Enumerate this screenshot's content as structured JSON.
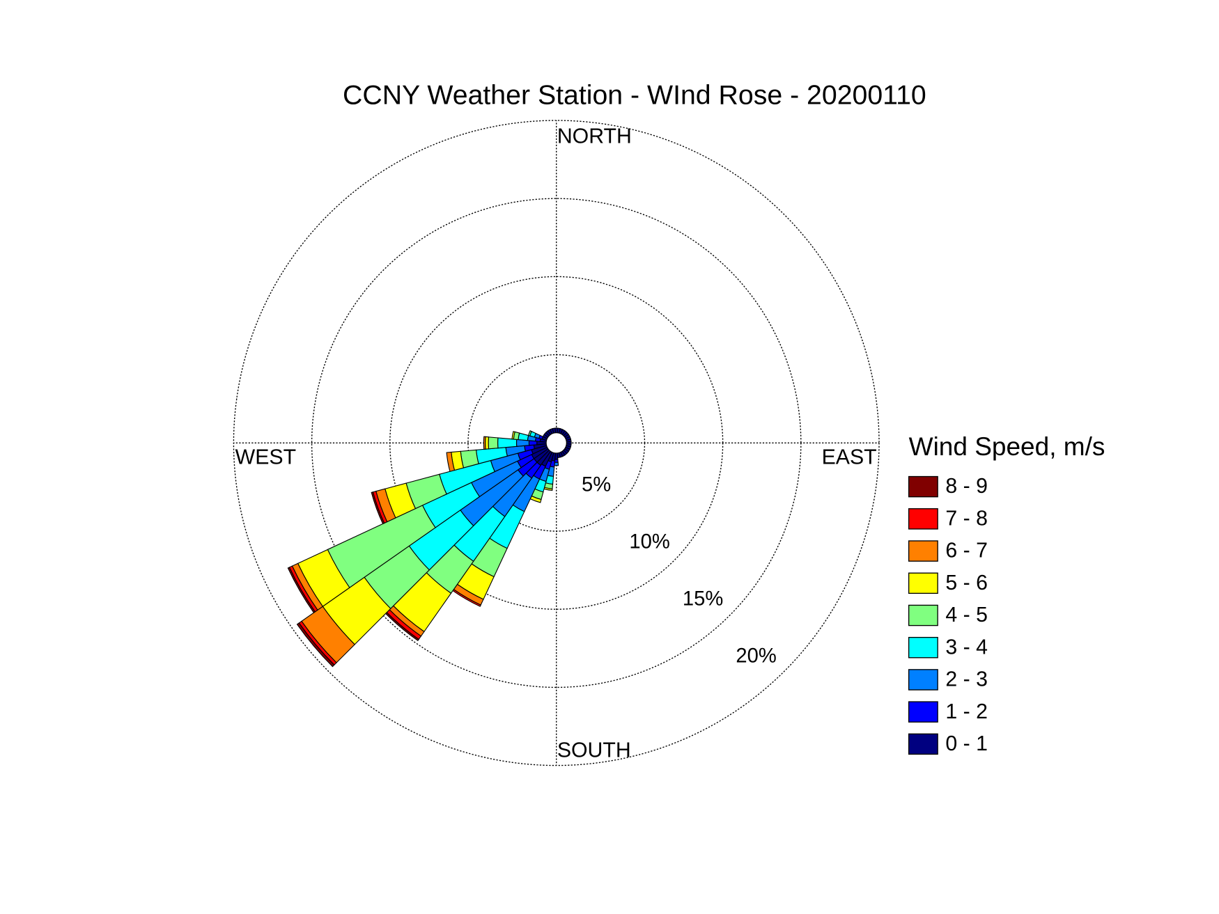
{
  "chart_data": {
    "type": "windrose",
    "title": "CCNY Weather Station - WInd Rose - 20200110",
    "legend_title": "Wind Speed, m/s",
    "direction_labels": {
      "north": "NORTH",
      "east": "EAST",
      "south": "SOUTH",
      "west": "WEST"
    },
    "x": [
      0,
      10,
      20,
      30,
      40,
      50,
      60,
      70,
      80,
      90,
      100,
      110,
      120,
      130,
      140,
      150,
      160,
      170,
      180,
      190,
      200,
      210,
      220,
      230,
      240,
      250,
      260,
      270,
      280,
      290,
      300,
      310,
      320,
      330,
      340,
      350
    ],
    "ylim": [
      0,
      20
    ],
    "yticks": [
      {
        "value": 5,
        "label": "5%"
      },
      {
        "value": 10,
        "label": "10%"
      },
      {
        "value": 15,
        "label": "15%"
      },
      {
        "value": 20,
        "label": "20%"
      }
    ],
    "grid": true,
    "legend": "right",
    "series": [
      {
        "name": "0 - 1",
        "color": "#000080",
        "values": [
          0.3,
          0.3,
          0.3,
          0.3,
          0.3,
          0.3,
          0.3,
          0.3,
          0.3,
          0.3,
          0.3,
          0.3,
          0.3,
          0.3,
          0.3,
          0.3,
          0.3,
          0.3,
          0.4,
          0.5,
          0.6,
          1.0,
          1.1,
          1.1,
          1.1,
          1.0,
          0.8,
          0.6,
          0.4,
          0.3,
          0.3,
          0.3,
          0.3,
          0.3,
          0.3,
          0.3
        ]
      },
      {
        "name": "1 - 2",
        "color": "#0000ff",
        "values": [
          0,
          0,
          0,
          0,
          0,
          0,
          0,
          0,
          0,
          0,
          0,
          0,
          0,
          0,
          0,
          0,
          0,
          0,
          0.2,
          0.4,
          0.5,
          0.9,
          1.0,
          1.25,
          1.0,
          0.9,
          0.6,
          0.5,
          0.3,
          0.2,
          0,
          0,
          0,
          0,
          0,
          0
        ]
      },
      {
        "name": "2 - 3",
        "color": "#0080ff",
        "values": [
          0,
          0,
          0,
          0,
          0,
          0,
          0,
          0,
          0,
          0,
          0,
          0,
          0,
          0,
          0,
          0,
          0,
          0,
          0.2,
          0.6,
          0.8,
          2.3,
          3.0,
          4.5,
          3.25,
          1.8,
          1.2,
          0.8,
          0.5,
          0.3,
          0,
          0,
          0,
          0,
          0,
          0
        ]
      },
      {
        "name": "3 - 4",
        "color": "#00ffff",
        "values": [
          0,
          0,
          0,
          0,
          0,
          0,
          0,
          0,
          0,
          0,
          0,
          0,
          0,
          0,
          0,
          0,
          0,
          0,
          0,
          0.5,
          0.7,
          2.6,
          3.5,
          4.0,
          3.45,
          3.4,
          1.9,
          1.2,
          0.6,
          0.3,
          0,
          0,
          0,
          0,
          0,
          0
        ]
      },
      {
        "name": "4 - 5",
        "color": "#80ff80",
        "values": [
          0,
          0,
          0,
          0,
          0,
          0,
          0,
          0,
          0,
          0,
          0,
          0,
          0,
          0,
          0,
          0,
          0,
          0,
          0,
          0.3,
          0.5,
          2.0,
          2.5,
          3.5,
          6.7,
          2.2,
          1.0,
          0.6,
          0.3,
          0.1,
          0,
          0,
          0,
          0,
          0,
          0
        ]
      },
      {
        "name": "5 - 6",
        "color": "#ffff00",
        "values": [
          0,
          0,
          0,
          0,
          0,
          0,
          0,
          0,
          0,
          0,
          0,
          0,
          0,
          0,
          0,
          0,
          0,
          0,
          0,
          0.1,
          0.2,
          1.6,
          3.0,
          3.25,
          2.1,
          1.4,
          0.6,
          0.2,
          0.1,
          0,
          0,
          0,
          0,
          0,
          0,
          0
        ]
      },
      {
        "name": "6 - 7",
        "color": "#ff8000",
        "values": [
          0,
          0,
          0,
          0,
          0,
          0,
          0,
          0,
          0,
          0,
          0,
          0,
          0,
          0,
          0,
          0,
          0,
          0,
          0,
          0,
          0,
          0.4,
          0.35,
          1.65,
          0.4,
          0.6,
          0.3,
          0.1,
          0,
          0,
          0,
          0,
          0,
          0,
          0,
          0
        ]
      },
      {
        "name": "7 - 8",
        "color": "#ff0000",
        "values": [
          0,
          0,
          0,
          0,
          0,
          0,
          0,
          0,
          0,
          0,
          0,
          0,
          0,
          0,
          0,
          0,
          0,
          0,
          0,
          0,
          0,
          0.1,
          0.25,
          0.2,
          0.2,
          0.2,
          0,
          0,
          0,
          0,
          0,
          0,
          0,
          0,
          0,
          0
        ]
      },
      {
        "name": "8 - 9",
        "color": "#800000",
        "values": [
          0,
          0,
          0,
          0,
          0,
          0,
          0,
          0,
          0,
          0,
          0,
          0,
          0,
          0,
          0,
          0,
          0,
          0,
          0,
          0,
          0,
          0,
          0.1,
          0.15,
          0.1,
          0.1,
          0,
          0,
          0,
          0,
          0,
          0,
          0,
          0,
          0,
          0
        ]
      }
    ]
  }
}
